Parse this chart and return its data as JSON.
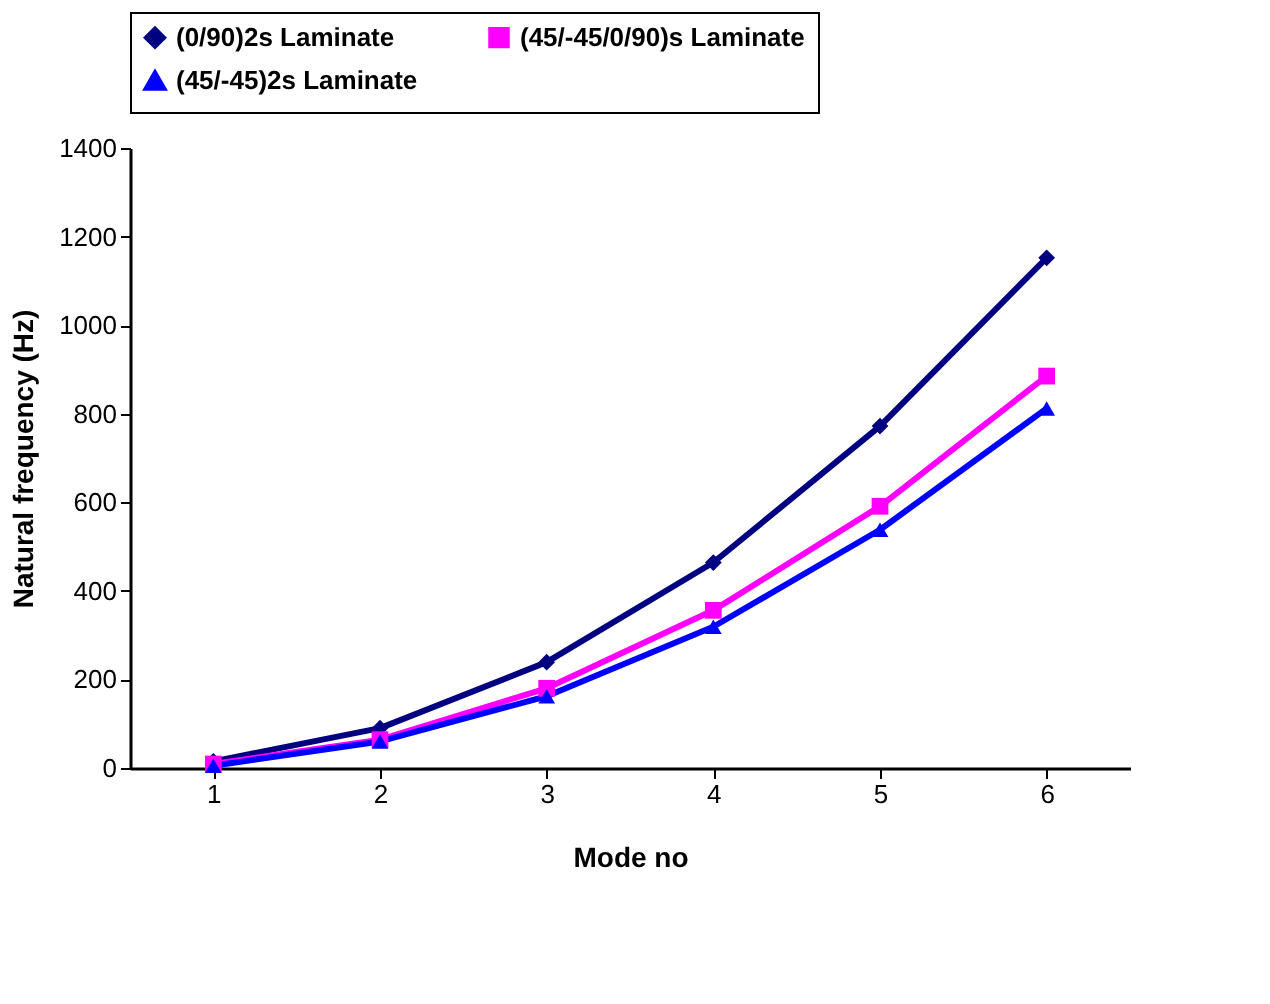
{
  "chart_data": {
    "type": "line",
    "xlabel": "Mode no",
    "ylabel": "Natural frequency (Hz)",
    "categories": [
      "1",
      "2",
      "3",
      "4",
      "5",
      "6"
    ],
    "series": [
      {
        "name": "(0/90)2s Laminate",
        "color": "#000080",
        "marker": "diamond",
        "values": [
          15,
          90,
          239,
          464,
          772,
          1152
        ]
      },
      {
        "name": "(45/-45/0/90)s Laminate",
        "color": "#ff00ff",
        "marker": "square",
        "values": [
          9,
          64,
          180,
          356,
          591,
          885
        ]
      },
      {
        "name": "(45/-45)2s Laminate",
        "color": "#0000ff",
        "marker": "triangle",
        "values": [
          5,
          60,
          162,
          319,
          538,
          812
        ]
      }
    ],
    "ylim": [
      0,
      1400
    ],
    "yticks": [
      0,
      200,
      400,
      600,
      800,
      1000,
      1200,
      1400
    ],
    "grid": false,
    "legend": "top",
    "line_style": "solid"
  }
}
